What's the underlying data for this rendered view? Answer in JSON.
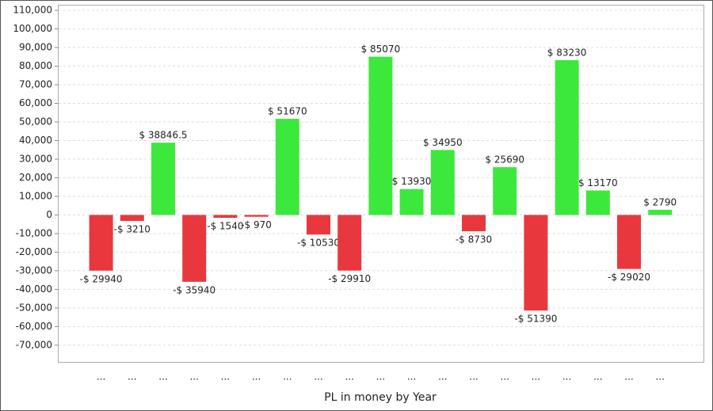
{
  "chart_data": {
    "type": "bar",
    "xlabel": "PL in money by Year",
    "categories": [
      "...",
      "...",
      "...",
      "...",
      "...",
      "...",
      "...",
      "...",
      "...",
      "...",
      "...",
      "...",
      "...",
      "...",
      "...",
      "...",
      "...",
      "...",
      "..."
    ],
    "values": [
      -29940,
      -3210,
      38846.5,
      -35940,
      -1540,
      -970,
      51670,
      -10530,
      -29910,
      85070,
      13930,
      34950,
      -8730,
      25690,
      -51390,
      83230,
      13170,
      -29020,
      2790
    ],
    "value_labels": [
      "-$ 29940",
      "-$ 3210",
      "$ 38846.5",
      "-$ 35940",
      "-$ 1540",
      "-$ 970",
      "$ 51670",
      "-$ 10530",
      "-$ 29910",
      "$ 85070",
      "$ 13930",
      "$ 34950",
      "-$ 8730",
      "$ 25690",
      "-$ 51390",
      "$ 83230",
      "$ 13170",
      "-$ 29020",
      "$ 2790"
    ],
    "positive_color": "#3de83d",
    "negative_color": "#e8383d",
    "ylim": [
      -79000,
      113000
    ],
    "yticks": [
      {
        "value": -70000,
        "label": "-70,000"
      },
      {
        "value": -60000,
        "label": "-60,000"
      },
      {
        "value": -50000,
        "label": "-50,000"
      },
      {
        "value": -40000,
        "label": "-40,000"
      },
      {
        "value": -30000,
        "label": "-30,000"
      },
      {
        "value": -20000,
        "label": "-20,000"
      },
      {
        "value": -10000,
        "label": "-10,000"
      },
      0,
      {
        "value": 10000,
        "label": "10,000"
      },
      {
        "value": 20000,
        "label": "20,000"
      },
      {
        "value": 30000,
        "label": "30,000"
      },
      {
        "value": 40000,
        "label": "40,000"
      },
      {
        "value": 50000,
        "label": "50,000"
      },
      {
        "value": 60000,
        "label": "60,000"
      },
      {
        "value": 70000,
        "label": "70,000"
      },
      {
        "value": 80000,
        "label": "80,000"
      },
      {
        "value": 90000,
        "label": "90,000"
      },
      {
        "value": 100000,
        "label": "100,000"
      },
      {
        "value": 110000,
        "label": "110,000"
      }
    ],
    "grid": true
  }
}
